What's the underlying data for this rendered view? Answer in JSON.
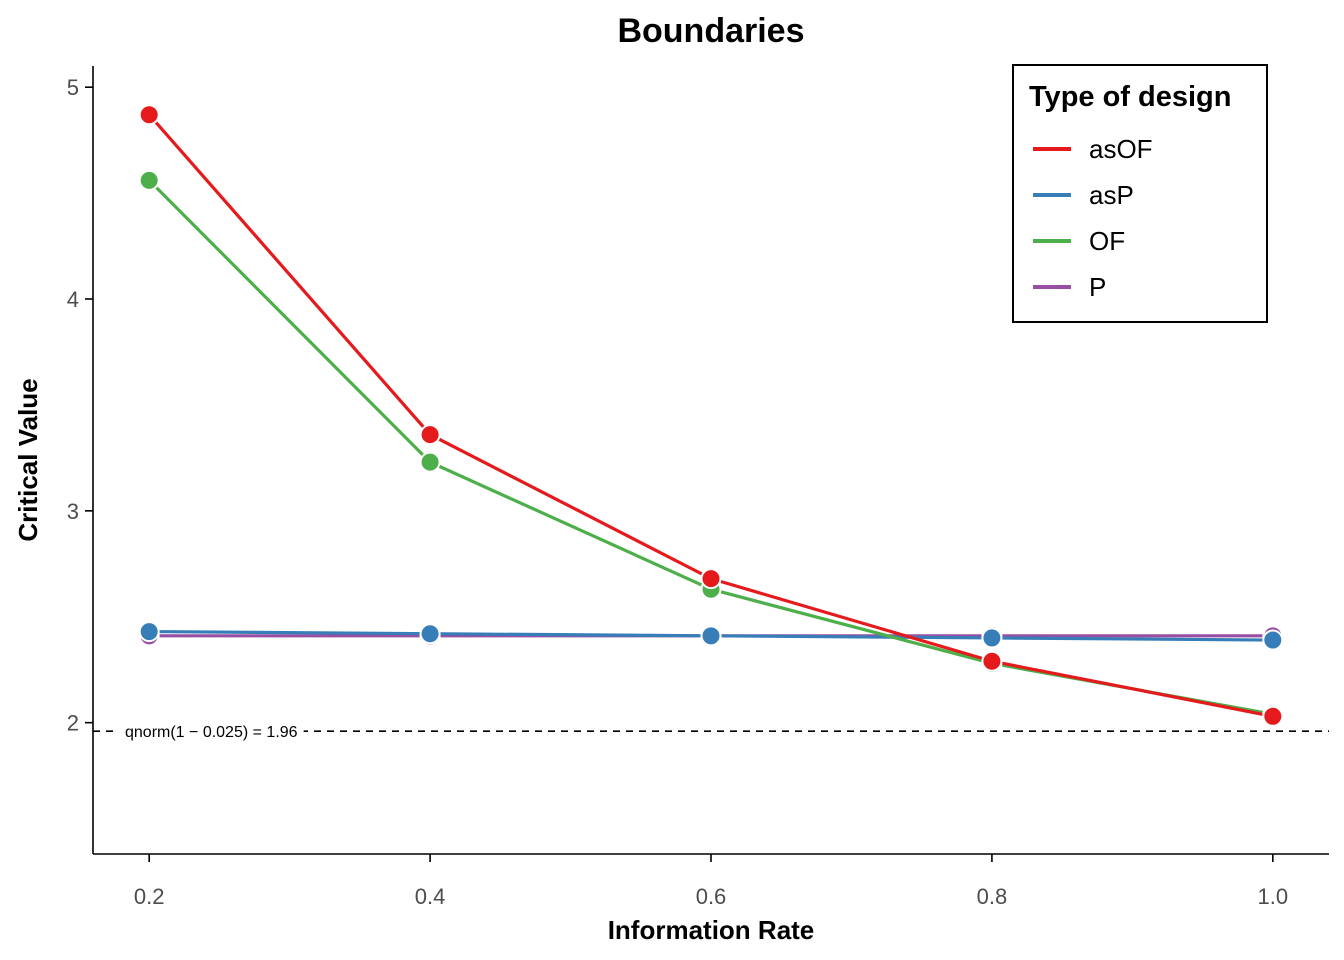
{
  "chart_data": {
    "type": "line",
    "title": "Boundaries",
    "xlabel": "Information Rate",
    "ylabel": "Critical Value",
    "x": [
      0.2,
      0.4,
      0.6,
      0.8,
      1.0
    ],
    "x_tick_labels": [
      "0.2",
      "0.4",
      "0.6",
      "0.8",
      "1.0"
    ],
    "y_ticks": [
      2,
      3,
      4,
      5
    ],
    "y_tick_labels": [
      "2",
      "3",
      "4",
      "5"
    ],
    "xlim": [
      0.16,
      1.04
    ],
    "ylim": [
      1.38,
      5.1
    ],
    "grid": false,
    "legend": {
      "title": "Type of design",
      "position": "top-right"
    },
    "series": [
      {
        "name": "asOF",
        "color": "#E41A1C",
        "values": [
          4.87,
          3.36,
          2.68,
          2.29,
          2.03
        ]
      },
      {
        "name": "asP",
        "color": "#377EB8",
        "values": [
          2.43,
          2.42,
          2.41,
          2.4,
          2.39
        ]
      },
      {
        "name": "OF",
        "color": "#4DAF4A",
        "values": [
          4.56,
          3.23,
          2.63,
          2.28,
          2.04
        ]
      },
      {
        "name": "P",
        "color": "#984EA3",
        "values": [
          2.41,
          2.41,
          2.41,
          2.41,
          2.41
        ]
      }
    ],
    "draw_order": [
      "P",
      "asP",
      "OF",
      "asOF"
    ],
    "reference_line": {
      "y": 1.96,
      "style": "dashed",
      "label": "qnorm(1 − 0.025) = 1.96"
    }
  }
}
